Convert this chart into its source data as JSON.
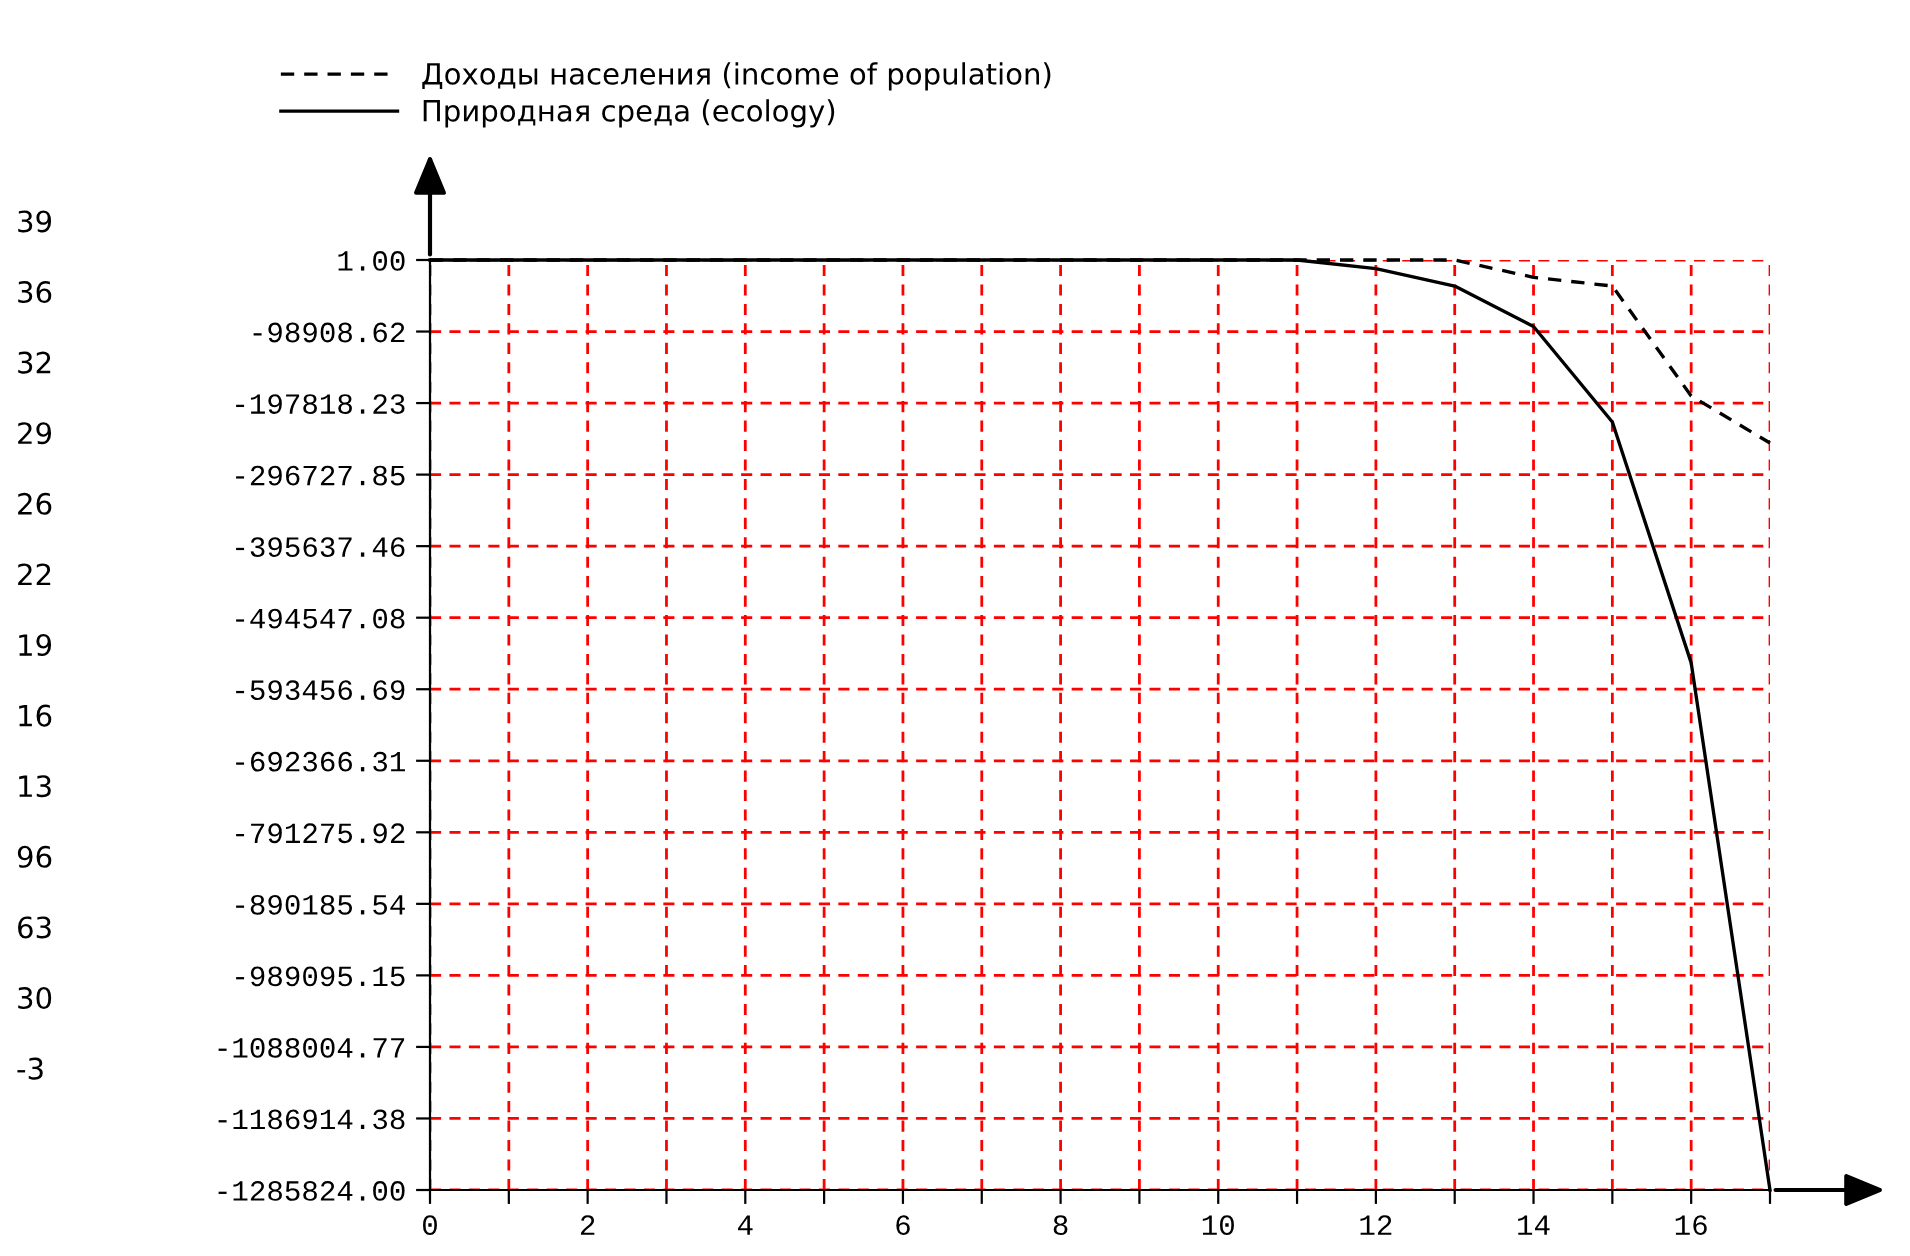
{
  "chart_data": {
    "type": "line",
    "x": [
      0,
      1,
      2,
      3,
      4,
      5,
      6,
      7,
      8,
      9,
      10,
      11,
      12,
      13,
      14,
      15,
      16,
      17
    ],
    "series": [
      {
        "name": "Доходы населения (income of population)",
        "color": "#000000",
        "line_style": "dashed",
        "values": [
          1,
          1,
          1,
          1,
          1,
          1,
          1,
          1,
          1,
          1,
          1,
          1,
          1,
          1,
          -24000,
          -36000,
          -188000,
          -253000
        ]
      },
      {
        "name": "Природная среда (ecology)",
        "color": "#000000",
        "line_style": "solid",
        "values": [
          1,
          1,
          1,
          1,
          1,
          1,
          1,
          1,
          1,
          1,
          1,
          1,
          -12000,
          -36000,
          -92000,
          -224000,
          -557000,
          -1285824
        ]
      }
    ],
    "xlim": [
      0,
      17
    ],
    "xticks": [
      0,
      {
        "value": 1,
        "label": null
      },
      2,
      {
        "value": 3,
        "label": null
      },
      4,
      {
        "value": 5,
        "label": null
      },
      6,
      {
        "value": 7,
        "label": null
      },
      8,
      {
        "value": 9,
        "label": null
      },
      10,
      {
        "value": 11,
        "label": null
      },
      12,
      {
        "value": 13,
        "label": null
      },
      14,
      {
        "value": 15,
        "label": null
      },
      16,
      {
        "value": 17,
        "label": null
      }
    ],
    "ylim": [
      -1285824,
      1
    ],
    "yticks": [
      {
        "value": 1,
        "label": "1.00"
      },
      {
        "value": -98908.62,
        "label": "-98908.62"
      },
      {
        "value": -197818.23,
        "label": "-197818.23"
      },
      {
        "value": -296727.85,
        "label": "-296727.85"
      },
      {
        "value": -395637.46,
        "label": "-395637.46"
      },
      {
        "value": -494547.08,
        "label": "-494547.08"
      },
      {
        "value": -593456.69,
        "label": "-593456.69"
      },
      {
        "value": -692366.31,
        "label": "-692366.31"
      },
      {
        "value": -791275.92,
        "label": "-791275.92"
      },
      {
        "value": -890185.54,
        "label": "-890185.54"
      },
      {
        "value": -989095.15,
        "label": "-989095.15"
      },
      {
        "value": -1088004.77,
        "label": "-1088004.77"
      },
      {
        "value": -1186914.38,
        "label": "-1186914.38"
      },
      {
        "value": -1285824,
        "label": "-1285824.00"
      }
    ],
    "annotations": [
      "39",
      "36",
      "32",
      "29",
      "26",
      "22",
      "19",
      "16",
      "13",
      "96",
      "63",
      "30",
      "-3"
    ],
    "grid": true,
    "legend": "top left",
    "marker": "none"
  }
}
